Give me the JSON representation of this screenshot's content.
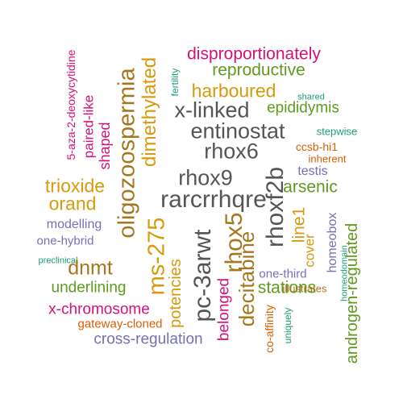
{
  "colors": {
    "pink": "#d4117a",
    "green": "#5f9a1f",
    "gold": "#d79a0d",
    "gray": "#555555",
    "teal": "#1b9e77",
    "orange": "#d95f02",
    "purple": "#7570b3",
    "brown": "#a6761d"
  },
  "words": [
    {
      "text": "disproportionately",
      "color": "pink",
      "rotated": false
    },
    {
      "text": "reproductive",
      "color": "green",
      "rotated": false
    },
    {
      "text": "harboured",
      "color": "gold",
      "rotated": false
    },
    {
      "text": "x-linked",
      "color": "gray",
      "rotated": false
    },
    {
      "text": "epididymis",
      "color": "green",
      "rotated": false
    },
    {
      "text": "shared",
      "color": "teal",
      "rotated": false
    },
    {
      "text": "entinostat",
      "color": "gray",
      "rotated": false
    },
    {
      "text": "stepwise",
      "color": "teal",
      "rotated": false
    },
    {
      "text": "rhox6",
      "color": "gray",
      "rotated": false
    },
    {
      "text": "ccsb-hi1",
      "color": "orange",
      "rotated": false
    },
    {
      "text": "inherent",
      "color": "orange",
      "rotated": false
    },
    {
      "text": "testis",
      "color": "purple",
      "rotated": false
    },
    {
      "text": "rhox9",
      "color": "gray",
      "rotated": false
    },
    {
      "text": "trioxide",
      "color": "gold",
      "rotated": false
    },
    {
      "text": "arsenic",
      "color": "green",
      "rotated": false
    },
    {
      "text": "orand",
      "color": "gold",
      "rotated": false
    },
    {
      "text": "rarcrrhqre",
      "color": "gray",
      "rotated": false
    },
    {
      "text": "modelling",
      "color": "purple",
      "rotated": false
    },
    {
      "text": "one-hybrid",
      "color": "purple",
      "rotated": false
    },
    {
      "text": "preclinical",
      "color": "teal",
      "rotated": false
    },
    {
      "text": "dnmt",
      "color": "brown",
      "rotated": false
    },
    {
      "text": "one-third",
      "color": "purple",
      "rotated": false
    },
    {
      "text": "underlining",
      "color": "green",
      "rotated": false
    },
    {
      "text": "stations",
      "color": "green",
      "rotated": false
    },
    {
      "text": "x-chromosome",
      "color": "pink",
      "rotated": false
    },
    {
      "text": "illustrates",
      "color": "brown",
      "rotated": false
    },
    {
      "text": "gateway-cloned",
      "color": "orange",
      "rotated": false
    },
    {
      "text": "cross-regulation",
      "color": "purple",
      "rotated": false
    },
    {
      "text": "5-aza-2-deoxycytidine",
      "color": "pink",
      "rotated": true
    },
    {
      "text": "paired-like",
      "color": "pink",
      "rotated": true
    },
    {
      "text": "shaped",
      "color": "pink",
      "rotated": true
    },
    {
      "text": "oligozoospermia",
      "color": "brown",
      "rotated": true
    },
    {
      "text": "dimethylated",
      "color": "gold",
      "rotated": true
    },
    {
      "text": "fertility",
      "color": "teal",
      "rotated": true
    },
    {
      "text": "ms-275",
      "color": "gold",
      "rotated": true
    },
    {
      "text": "potencies",
      "color": "gold",
      "rotated": true
    },
    {
      "text": "pc-3arwt",
      "color": "gray",
      "rotated": true
    },
    {
      "text": "rhox5",
      "color": "brown",
      "rotated": true
    },
    {
      "text": "belonged",
      "color": "pink",
      "rotated": true
    },
    {
      "text": "decitabine",
      "color": "brown",
      "rotated": true
    },
    {
      "text": "rhoxf2b",
      "color": "gray",
      "rotated": true
    },
    {
      "text": "line1",
      "color": "gold",
      "rotated": true
    },
    {
      "text": "cover",
      "color": "gold",
      "rotated": true
    },
    {
      "text": "co-affinity",
      "color": "orange",
      "rotated": true
    },
    {
      "text": "uniquely",
      "color": "teal",
      "rotated": true
    },
    {
      "text": "homeobox",
      "color": "purple",
      "rotated": true
    },
    {
      "text": "homeodomain",
      "color": "teal",
      "rotated": true
    },
    {
      "text": "androgen-regulated",
      "color": "green",
      "rotated": true
    }
  ]
}
